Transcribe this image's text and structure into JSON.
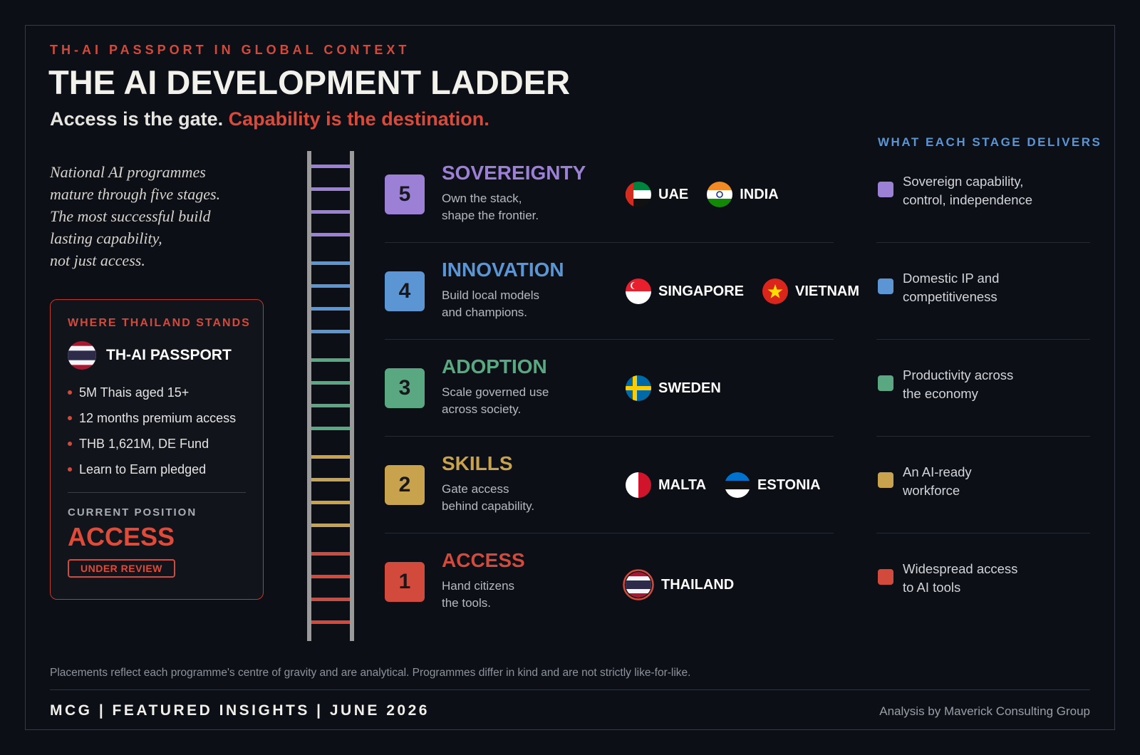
{
  "header": {
    "kicker": "TH-AI PASSPORT IN GLOBAL CONTEXT",
    "title": "THE AI DEVELOPMENT LADDER",
    "subtitle_lead": "Access is the gate.",
    "subtitle_accent": "Capability is the destination."
  },
  "intro": [
    "National AI programmes",
    "mature through five stages.",
    "The most successful build",
    "lasting capability,",
    "not just access."
  ],
  "status_card": {
    "heading": "WHERE THAILAND STANDS",
    "programme": "TH-AI PASSPORT",
    "bullets": [
      "5M Thais aged 15+",
      "12 months premium access",
      "THB 1,621M, DE Fund",
      "Learn to Earn pledged"
    ],
    "position_label": "CURRENT POSITION",
    "position": "ACCESS",
    "badge": "UNDER REVIEW"
  },
  "ladder": {
    "delivers_heading": "WHAT EACH STAGE DELIVERS",
    "stages": [
      {
        "number": 5,
        "name": "SOVEREIGNTY",
        "color": "#9b80d6",
        "description": [
          "Own the stack,",
          "shape the frontier."
        ],
        "countries": [
          "UAE",
          "INDIA"
        ],
        "delivers": [
          "Sovereign capability,",
          "control, independence"
        ]
      },
      {
        "number": 4,
        "name": "INNOVATION",
        "color": "#5b95d3",
        "description": [
          "Build local models",
          "and champions."
        ],
        "countries": [
          "SINGAPORE",
          "VIETNAM"
        ],
        "delivers": [
          "Domestic IP and",
          "competitiveness"
        ]
      },
      {
        "number": 3,
        "name": "ADOPTION",
        "color": "#5aa882",
        "description": [
          "Scale governed use",
          "across society."
        ],
        "countries": [
          "SWEDEN"
        ],
        "delivers": [
          "Productivity across",
          "the economy"
        ]
      },
      {
        "number": 2,
        "name": "SKILLS",
        "color": "#c9a24e",
        "description": [
          "Gate access",
          "behind capability."
        ],
        "countries": [
          "MALTA",
          "ESTONIA"
        ],
        "delivers": [
          "An AI-ready",
          "workforce"
        ]
      },
      {
        "number": 1,
        "name": "ACCESS",
        "color": "#d24a3c",
        "description": [
          "Hand citizens",
          "the tools."
        ],
        "countries": [
          "THAILAND"
        ],
        "delivers": [
          "Widespread access",
          "to AI tools"
        ]
      }
    ]
  },
  "footer": {
    "note": "Placements reflect each programme's centre of gravity and are analytical. Programmes differ in kind and are not strictly like-for-like.",
    "brand": "MCG | FEATURED INSIGHTS | JUNE 2026",
    "credit": "Analysis by Maverick Consulting Group"
  }
}
